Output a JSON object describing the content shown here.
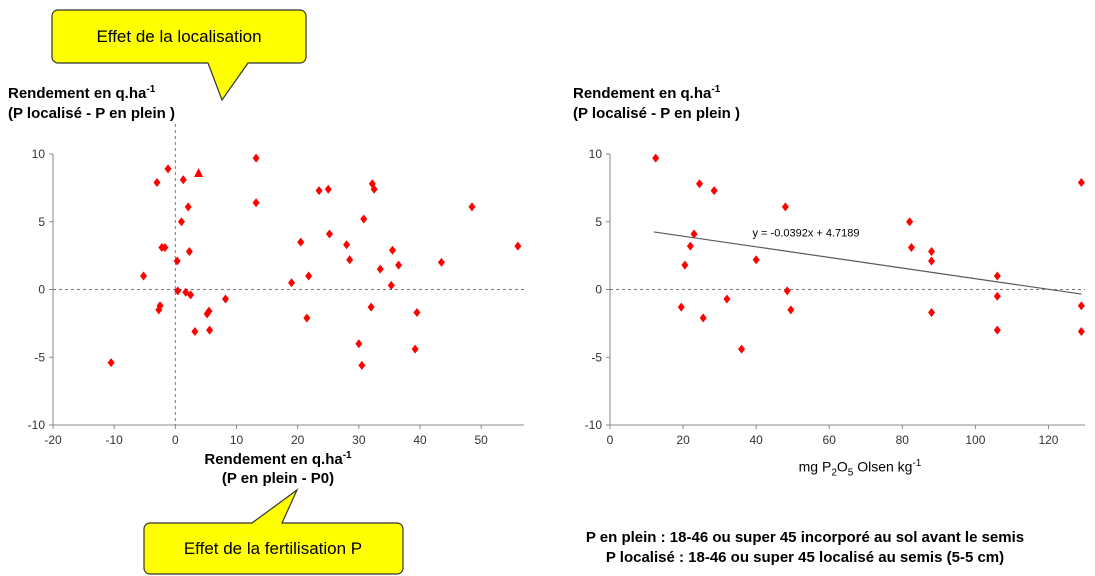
{
  "callouts": {
    "top": "Effet de la localisation",
    "bottom": "Effet de la fertilisation P"
  },
  "left_chart": {
    "ylabel_line1_main": "Rendement en q.ha",
    "ylabel_line1_sup": "-1",
    "ylabel_line2": "(P localisé - P en plein )",
    "xlabel_line1_main": "Rendement en q.ha",
    "xlabel_line1_sup": "-1",
    "xlabel_line2": "(P en plein - P0)"
  },
  "right_chart": {
    "ylabel_line1_main": "Rendement en q.ha",
    "ylabel_line1_sup": "-1",
    "ylabel_line2": "(P localisé - P en plein )",
    "xlabel_pre": "mg P",
    "xlabel_sub1": "2",
    "xlabel_mid": "O",
    "xlabel_sub2": "5",
    "xlabel_post": " Olsen kg",
    "xlabel_sup": "-1",
    "equation": "y = -0.0392x + 4.7189"
  },
  "notes": {
    "line1": "P en plein : 18-46 ou super 45  incorporé au sol avant le semis",
    "line2": "P localisé : 18-46 ou super 45 localisé au semis (5-5 cm)"
  },
  "colors": {
    "marker": "#ff0000",
    "callout_fill": "#ffff00",
    "trendline": "#595959"
  },
  "chart_data": [
    {
      "type": "scatter",
      "title": "",
      "xlabel": "Rendement en q.ha-1 (P en plein - P0)",
      "ylabel": "Rendement en q.ha-1 (P localisé - P en plein )",
      "xlim": [
        -20,
        57
      ],
      "ylim": [
        -10,
        10
      ],
      "xticks": [
        -20,
        -10,
        0,
        10,
        20,
        30,
        40,
        50
      ],
      "yticks": [
        -10,
        -5,
        0,
        5,
        10
      ],
      "reference_lines": {
        "x": 0,
        "y": 0
      },
      "grid": false,
      "series": [
        {
          "marker": "diamond",
          "points": [
            [
              -10.5,
              -5.4
            ],
            [
              -5.2,
              1.0
            ],
            [
              -3,
              7.9
            ],
            [
              -2.7,
              -1.5
            ],
            [
              -2.5,
              -1.2
            ],
            [
              -2.2,
              3.1
            ],
            [
              -1.7,
              3.1
            ],
            [
              -1.2,
              8.9
            ],
            [
              0.3,
              2.1
            ],
            [
              0.4,
              -0.1
            ],
            [
              1,
              5.0
            ],
            [
              1.3,
              8.1
            ],
            [
              1.7,
              -0.2
            ],
            [
              2.1,
              6.1
            ],
            [
              2.3,
              2.8
            ],
            [
              2.5,
              -0.4
            ],
            [
              3.2,
              -3.1
            ],
            [
              5.2,
              -1.8
            ],
            [
              5.5,
              -1.6
            ],
            [
              5.6,
              -3.0
            ],
            [
              8.2,
              -0.7
            ],
            [
              13.2,
              9.7
            ],
            [
              13.2,
              6.4
            ],
            [
              19,
              0.5
            ],
            [
              20.5,
              3.5
            ],
            [
              21.5,
              -2.1
            ],
            [
              21.8,
              1.0
            ],
            [
              23.5,
              7.3
            ],
            [
              25,
              7.4
            ],
            [
              25.2,
              4.1
            ],
            [
              28,
              3.3
            ],
            [
              28.5,
              2.2
            ],
            [
              30,
              -4.0
            ],
            [
              30.5,
              -5.6
            ],
            [
              30.8,
              5.2
            ],
            [
              32,
              -1.3
            ],
            [
              32.2,
              7.8
            ],
            [
              32.5,
              7.4
            ],
            [
              33.5,
              1.5
            ],
            [
              35.3,
              0.3
            ],
            [
              35.5,
              2.9
            ],
            [
              36.5,
              1.8
            ],
            [
              39.2,
              -4.4
            ],
            [
              39.5,
              -1.7
            ],
            [
              43.5,
              2.0
            ],
            [
              48.5,
              6.1
            ],
            [
              56,
              3.2
            ]
          ]
        },
        {
          "marker": "triangle",
          "points": [
            [
              3.8,
              8.6
            ]
          ]
        }
      ]
    },
    {
      "type": "scatter",
      "title": "",
      "xlabel": "mg P2O5 Olsen kg-1",
      "ylabel": "Rendement en q.ha-1 (P localisé - P en plein )",
      "xlim": [
        0,
        130
      ],
      "ylim": [
        -10,
        10
      ],
      "xticks": [
        0,
        20,
        40,
        60,
        80,
        100,
        120
      ],
      "yticks": [
        -10,
        -5,
        0,
        5,
        10
      ],
      "reference_lines": {
        "y": 0
      },
      "grid": false,
      "trendline": {
        "slope": -0.0392,
        "intercept": 4.7189,
        "x_range": [
          12,
          129
        ],
        "label": "y = -0.0392x + 4.7189"
      },
      "series": [
        {
          "marker": "diamond",
          "points": [
            [
              12.5,
              9.7
            ],
            [
              19.5,
              -1.3
            ],
            [
              20.5,
              1.8
            ],
            [
              22,
              3.2
            ],
            [
              23,
              4.1
            ],
            [
              24.5,
              7.8
            ],
            [
              25.5,
              -2.1
            ],
            [
              28.5,
              7.3
            ],
            [
              32,
              -0.7
            ],
            [
              36,
              -4.4
            ],
            [
              40,
              2.2
            ],
            [
              48,
              6.1
            ],
            [
              48.5,
              -0.1
            ],
            [
              49.5,
              -1.5
            ],
            [
              82,
              5.0
            ],
            [
              82.5,
              3.1
            ],
            [
              88,
              2.8
            ],
            [
              88,
              2.1
            ],
            [
              88,
              -1.7
            ],
            [
              106,
              1.0
            ],
            [
              106,
              -0.5
            ],
            [
              106,
              -3.0
            ],
            [
              129,
              7.9
            ],
            [
              129,
              -1.2
            ],
            [
              129,
              -3.1
            ]
          ]
        }
      ]
    }
  ]
}
